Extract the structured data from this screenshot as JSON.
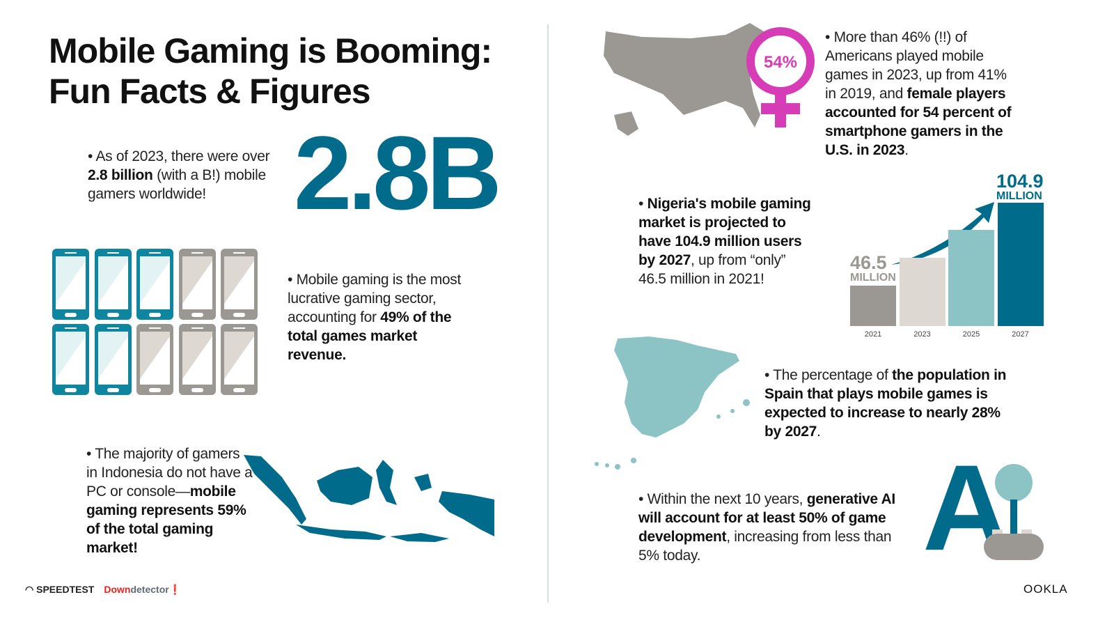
{
  "title": {
    "line1": "Mobile Gaming is Booming:",
    "line2": "Fun Facts & Figures"
  },
  "gamers": {
    "pre": "As of 2023, there were over ",
    "bold": "2.8 billion",
    "post": " (with a B!) mobile gamers worldwide!",
    "big": "2.8B"
  },
  "revenue": {
    "pre": "Mobile gaming is the most lucrative gaming sector, accounting for ",
    "bold": "49% of the total games market revenue.",
    "phones_highlighted": 5,
    "phones_total": 10
  },
  "indonesia": {
    "pre": "The majority of gamers in Indonesia do not have a PC or console—",
    "bold": "mobile gaming represents 59% of the total gaming market!"
  },
  "usa": {
    "badge": "54%",
    "pre": "More than 46% (!!) of Americans played mobile games in 2023, up from 41% in 2019, and ",
    "bold": "female players accounted for 54 percent of smartphone gamers in the U.S. in 2023",
    "post": "."
  },
  "nigeria": {
    "bold": "Nigeria's mobile gaming market is projected to have 104.9 million users by 2027",
    "post": ", up from “only” 46.5 million in 2021!"
  },
  "chart_data": {
    "type": "bar",
    "categories": [
      "2021",
      "2023",
      "2025",
      "2027"
    ],
    "values": [
      46.5,
      null,
      null,
      104.9
    ],
    "labels": [
      {
        "value": "46.5",
        "unit": "MILLION"
      },
      {
        "value": "104.9",
        "unit": "MILLION"
      }
    ],
    "colors": [
      "#9b9893",
      "#ddd8d1",
      "#8cc3c4",
      "#006b8a"
    ]
  },
  "spain": {
    "pre": "The percentage of ",
    "bold": "the population in Spain that plays mobile games is expected to increase to nearly 28% by 2027",
    "post": "."
  },
  "ai": {
    "pre": "Within the next 10 years, ",
    "bold": "generative AI will account for at least 50% of game development",
    "post": ", increasing from less than 5% today.",
    "letter": "A"
  },
  "footer": {
    "speedtest": "SPEEDTEST",
    "down": "Down",
    "detector": "detector",
    "ookla": "OOKLA"
  },
  "colors": {
    "teal": "#006b8a",
    "light_teal": "#8cc3c4",
    "gray": "#9b9893",
    "magenta": "#d63cb6"
  }
}
